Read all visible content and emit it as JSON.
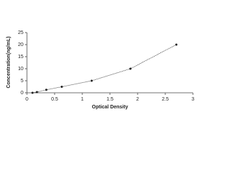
{
  "chart_data": {
    "type": "line",
    "x_label": "Optical Density",
    "y_label": "Concentration(ng/mL)",
    "x": [
      0.1,
      0.18,
      0.35,
      0.63,
      1.17,
      1.87,
      2.7
    ],
    "series": [
      {
        "color": "#222222",
        "values": [
          0,
          0.31,
          1.25,
          2.5,
          5,
          10,
          20
        ]
      }
    ],
    "xlim": [
      0,
      3
    ],
    "xticks": [
      0,
      0.5,
      1,
      1.5,
      2,
      2.5,
      3
    ],
    "ylim": [
      0,
      25
    ],
    "yticks": [
      0,
      5,
      10,
      15,
      20,
      25
    ],
    "grid": false
  }
}
